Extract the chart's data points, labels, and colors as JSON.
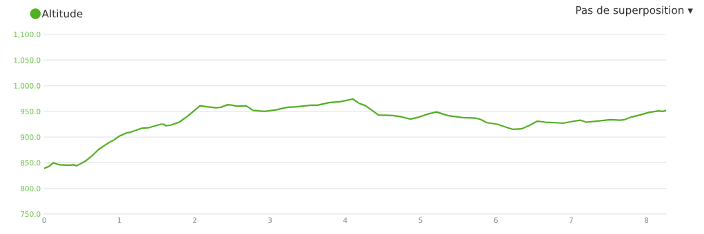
{
  "chart_data": {
    "type": "line",
    "x": [
      0,
      0.067,
      0.122,
      0.199,
      0.327,
      0.388,
      0.434,
      0.557,
      0.633,
      0.725,
      0.847,
      0.924,
      1.0,
      1.092,
      1.138,
      1.214,
      1.29,
      1.382,
      1.55,
      1.587,
      1.618,
      1.673,
      1.795,
      1.917,
      2.07,
      2.162,
      2.284,
      2.346,
      2.437,
      2.498,
      2.56,
      2.682,
      2.774,
      2.927,
      3.08,
      3.232,
      3.355,
      3.538,
      3.63,
      3.783,
      3.936,
      4.1,
      4.18,
      4.27,
      4.44,
      4.63,
      4.73,
      4.86,
      4.98,
      5.1,
      5.21,
      5.36,
      5.56,
      5.73,
      5.8,
      5.88,
      6.02,
      6.14,
      6.23,
      6.34,
      6.45,
      6.55,
      6.66,
      6.78,
      6.89,
      7.0,
      7.12,
      7.2,
      7.33,
      7.52,
      7.65,
      7.71,
      7.8,
      7.91,
      8.03,
      8.16,
      8.22,
      8.26
    ],
    "series": [
      {
        "name": "Altitude",
        "color": "#52b023",
        "values": [
          839,
          843,
          850,
          846,
          845,
          846,
          844,
          854,
          863,
          876,
          888,
          894,
          902,
          908,
          909,
          913,
          917,
          918,
          925,
          925,
          922,
          923,
          929,
          942,
          961,
          959,
          957,
          958,
          963,
          962,
          960,
          961,
          952,
          950,
          953,
          958,
          959,
          962,
          962,
          967,
          969,
          974,
          966,
          961,
          943,
          942,
          940,
          935,
          939,
          945,
          949,
          942,
          938,
          937,
          934,
          928,
          925,
          919,
          915,
          916,
          923,
          931,
          929,
          928,
          927,
          930,
          933,
          929,
          931,
          934,
          933,
          934,
          939,
          943,
          948,
          951,
          950,
          952
        ]
      }
    ],
    "xlim": [
      0,
      8.26
    ],
    "xticks": [
      0,
      1,
      2,
      3,
      4,
      5,
      6,
      7,
      8
    ],
    "ylim": [
      750,
      1100
    ],
    "yticks": [
      {
        "value": 750,
        "label": "750.0"
      },
      {
        "value": 800,
        "label": "800.0"
      },
      {
        "value": 850,
        "label": "850.0"
      },
      {
        "value": 900,
        "label": "900.0"
      },
      {
        "value": 950,
        "label": "950.0"
      },
      {
        "value": 1000,
        "label": "1,000.0"
      },
      {
        "value": 1050,
        "label": "1,050.0"
      },
      {
        "value": 1100,
        "label": "1,100.0"
      }
    ],
    "grid": "y",
    "legend": "top left",
    "marker": "none",
    "line_style": "solid",
    "annotations": [
      "Pas de superposition ▾"
    ]
  }
}
